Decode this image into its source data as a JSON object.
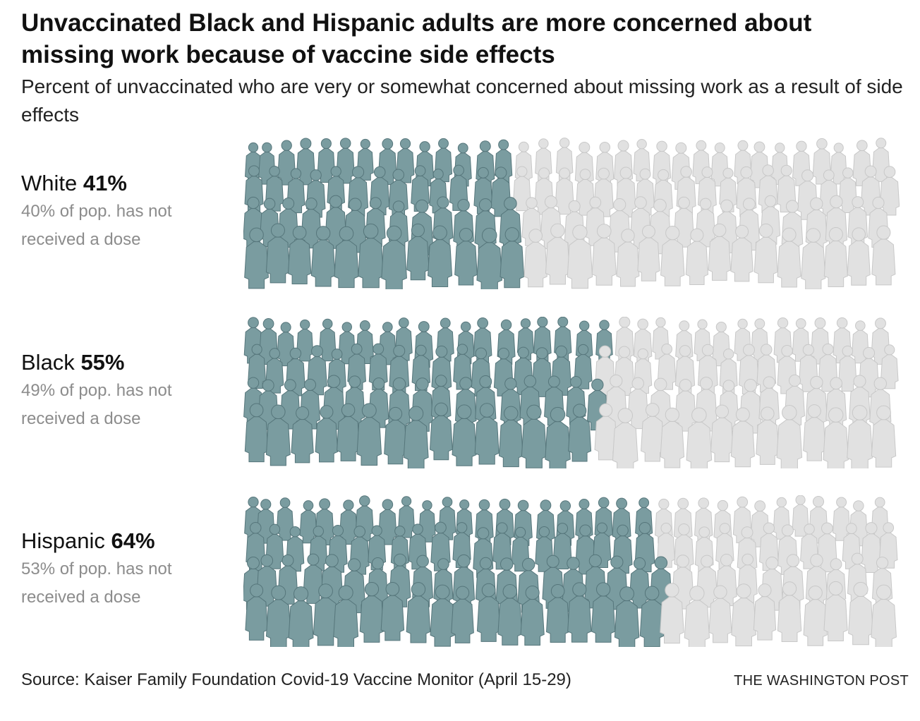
{
  "title": "Unvaccinated Black and Hispanic adults are more concerned about missing work because of vaccine side effects",
  "subtitle": "Percent of unvaccinated who are very or somewhat concerned about missing work as a result of side effects",
  "colors": {
    "concerned": "#7a9ca0",
    "concerned_edge": "#56767b",
    "other": "#e1e1e1",
    "other_edge": "#c8c8c8"
  },
  "chart_data": {
    "type": "bar",
    "categories": [
      "White",
      "Black",
      "Hispanic"
    ],
    "series": [
      {
        "values": [
          41,
          55,
          64
        ]
      }
    ],
    "unit": "%",
    "pct_labels": [
      "41%",
      "55%",
      "64%"
    ],
    "notes": [
      "40% of pop. has not received a dose",
      "49% of pop. has not received a dose",
      "53% of pop. has not received a dose"
    ],
    "not_received_dose": [
      40,
      49,
      53
    ],
    "ylim": [
      0,
      100
    ]
  },
  "footer": {
    "source": "Source: Kaiser Family Foundation Covid-19 Vaccine Monitor (April 15-29)",
    "credit": "THE WASHINGTON POST"
  }
}
